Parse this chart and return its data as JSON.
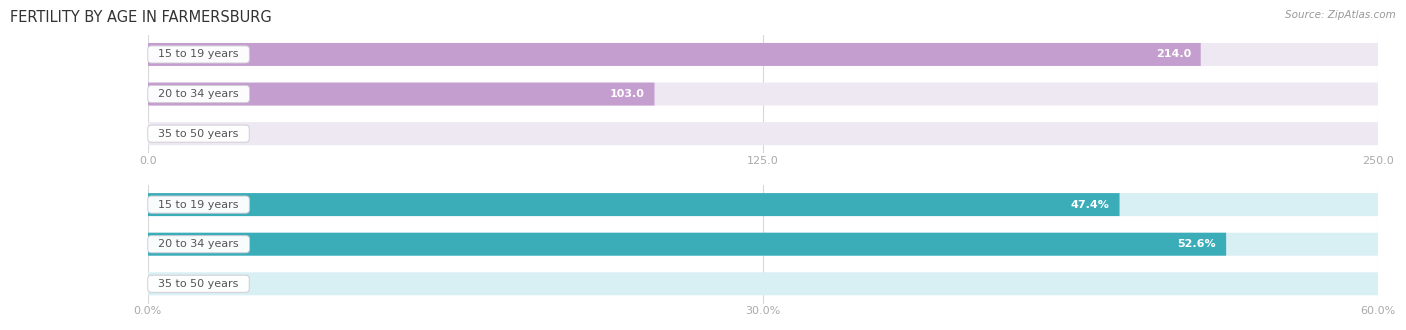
{
  "title": "FERTILITY BY AGE IN FARMERSBURG",
  "source": "Source: ZipAtlas.com",
  "top_chart": {
    "categories": [
      "15 to 19 years",
      "20 to 34 years",
      "35 to 50 years"
    ],
    "values": [
      214.0,
      103.0,
      0.0
    ],
    "xlim": [
      0,
      250.0
    ],
    "xticks": [
      0.0,
      125.0,
      250.0
    ],
    "xtick_labels": [
      "0.0",
      "125.0",
      "250.0"
    ],
    "bar_color": "#c49ece",
    "bar_bg_color": "#ede8f2",
    "value_label_color_inside": "#ffffff",
    "value_label_color_outside": "#999999"
  },
  "bottom_chart": {
    "categories": [
      "15 to 19 years",
      "20 to 34 years",
      "35 to 50 years"
    ],
    "values": [
      47.4,
      52.6,
      0.0
    ],
    "xlim": [
      0,
      60.0
    ],
    "xticks": [
      0.0,
      30.0,
      60.0
    ],
    "xtick_labels": [
      "0.0%",
      "30.0%",
      "60.0%"
    ],
    "bar_color": "#3aadb9",
    "bar_bg_color": "#d8eff3",
    "value_label_color_inside": "#ffffff",
    "value_label_color_outside": "#999999"
  },
  "bg_color": "#ffffff",
  "label_font_size": 8.0,
  "title_font_size": 10.5,
  "source_font_size": 7.5,
  "bar_height": 0.58,
  "cat_label_fontsize": 8.0
}
